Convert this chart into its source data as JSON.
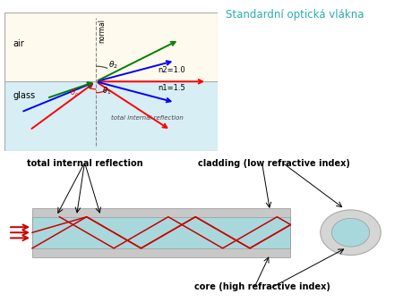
{
  "title": "Standardní optická vlákna",
  "title_color": "#2AACAC",
  "bg_color": "#ffffff",
  "top_diagram": {
    "air_color": "#FFFAEE",
    "glass_color": "#D8EEF5",
    "air_label": "air",
    "glass_label": "glass",
    "n2_label": "n2=1.0",
    "n1_label": "n1=1.5",
    "tir_label": "total internal reflection"
  },
  "bottom_diagram": {
    "cladding_color": "#C8C8C8",
    "core_color": "#A8D8DC",
    "ray_color": "#CC0000",
    "tir_label": "total internal reflection",
    "cladding_label": "cladding (low refractive index)",
    "core_label": "core (high refractive index)"
  }
}
